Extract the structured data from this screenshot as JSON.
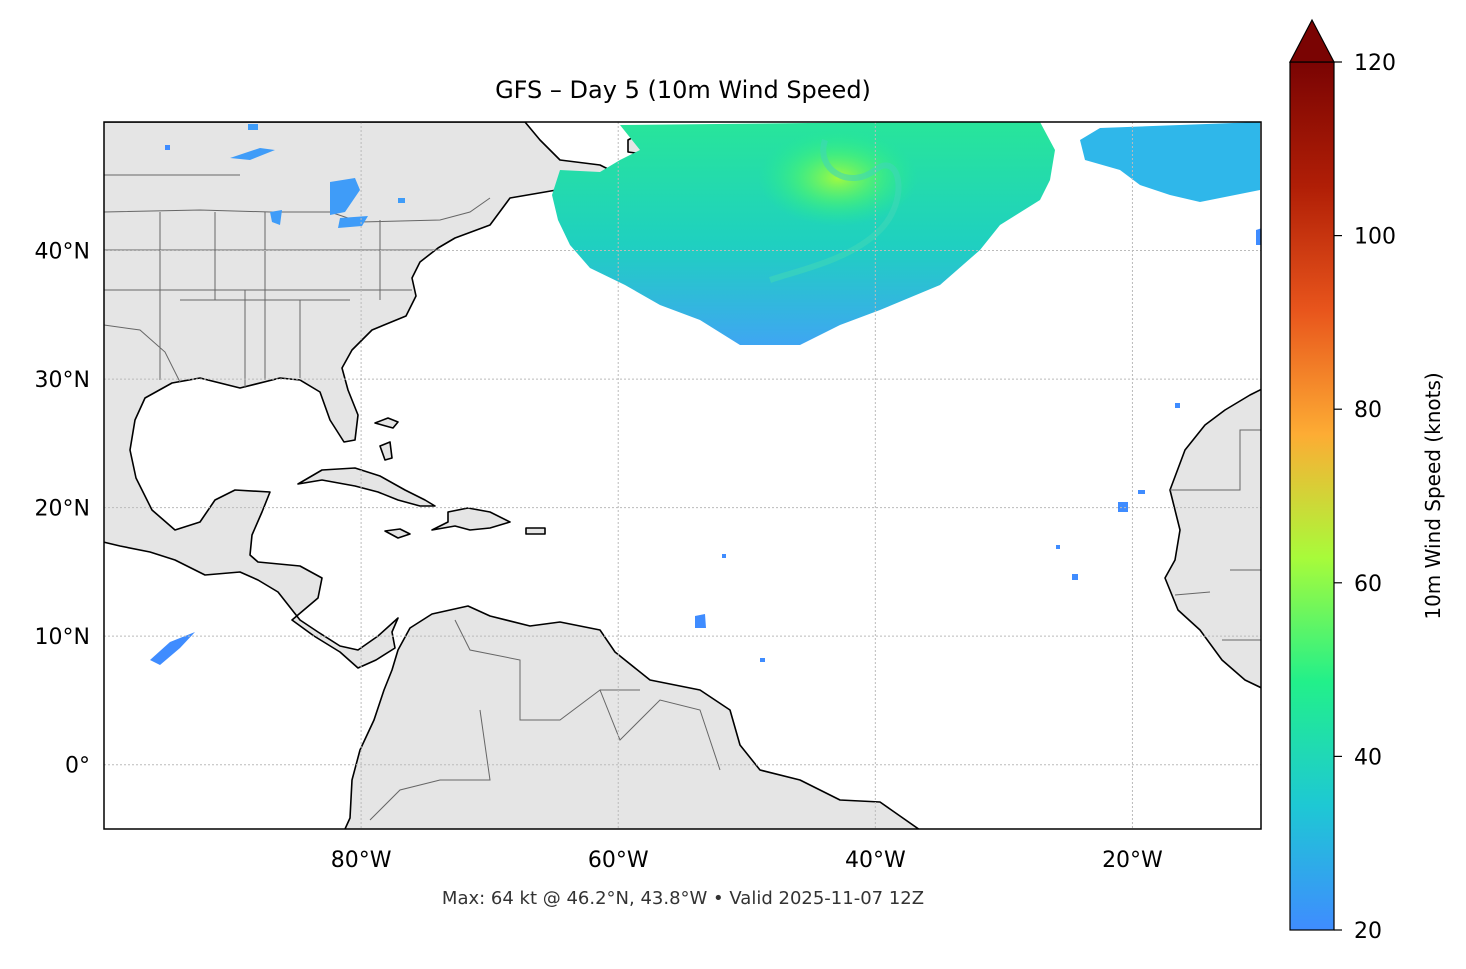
{
  "map": {
    "title": "GFS – Day 5 (10m Wind Speed)",
    "footer": "Max: 64 kt @ 46.2°N, 43.8°W • Valid 2025-11-07 12Z",
    "extent": {
      "lon_min": -100,
      "lon_max": -10,
      "lat_min": -5,
      "lat_max": 50
    },
    "lat_ticks": [
      {
        "lat": 40,
        "label": "40°N"
      },
      {
        "lat": 30,
        "label": "30°N"
      },
      {
        "lat": 20,
        "label": "20°N"
      },
      {
        "lat": 10,
        "label": "10°N"
      },
      {
        "lat": 0,
        "label": "0°"
      }
    ],
    "lon_ticks": [
      {
        "lon": -80,
        "label": "80°W"
      },
      {
        "lon": -60,
        "label": "60°W"
      },
      {
        "lon": -40,
        "label": "40°W"
      },
      {
        "lon": -20,
        "label": "20°W"
      }
    ],
    "gridlines": true,
    "colors": {
      "land": "#e5e5e5",
      "coast": "#000000",
      "border": "#666666",
      "grid": "#bbbbbb",
      "ocean": "#ffffff"
    }
  },
  "colorbar": {
    "label": "10m Wind Speed (knots)",
    "min": 20,
    "max": 120,
    "extend": "max",
    "ticks": [
      {
        "value": 20,
        "label": "20"
      },
      {
        "value": 40,
        "label": "40"
      },
      {
        "value": 60,
        "label": "60"
      },
      {
        "value": 80,
        "label": "80"
      },
      {
        "value": 100,
        "label": "100"
      },
      {
        "value": 120,
        "label": "120"
      }
    ],
    "colormap": [
      "#3f8cff",
      "#1ec8d4",
      "#22f08a",
      "#a8fb3a",
      "#fdac34",
      "#e8551c",
      "#b01e06",
      "#7a0403"
    ]
  },
  "chart_data": {
    "type": "heatmap",
    "title": "GFS – Day 5 (10m Wind Speed)",
    "value_label": "10m Wind Speed (knots)",
    "value_range": [
      20,
      120
    ],
    "max_point": {
      "value": 64,
      "lat": 46.2,
      "lon": -43.8
    },
    "valid": "2025-11-07 12Z",
    "regions": [
      {
        "area": "North Atlantic storm",
        "lon": [
          -65,
          -35
        ],
        "lat": [
          36,
          50
        ],
        "max_kt": 64
      },
      {
        "area": "Northeast Atlantic",
        "lon": [
          -28,
          -10
        ],
        "lat": [
          45,
          50
        ],
        "max_kt": 30
      },
      {
        "area": "Great Lakes",
        "lon": [
          -84,
          -78
        ],
        "lat": [
          41,
          46
        ],
        "max_kt": 24
      },
      {
        "area": "Eastern Pacific",
        "lon": [
          -96,
          -92
        ],
        "lat": [
          8,
          10
        ],
        "max_kt": 24
      }
    ]
  }
}
